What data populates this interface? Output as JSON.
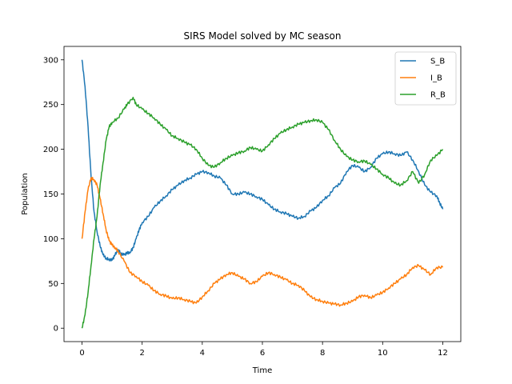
{
  "chart_data": {
    "type": "line",
    "title": "SIRS Model solved by MC season",
    "xlabel": "Time",
    "ylabel": "Population",
    "xlim": [
      -0.6,
      12.6
    ],
    "ylim": [
      -15,
      315
    ],
    "x_ticks": [
      0,
      2,
      4,
      6,
      8,
      10,
      12
    ],
    "y_ticks": [
      0,
      50,
      100,
      150,
      200,
      250,
      300
    ],
    "grid": false,
    "legend_position": "top-right",
    "series": [
      {
        "name": "S_B",
        "color": "#1f77b4",
        "points": [
          [
            0,
            300
          ],
          [
            0.1,
            270
          ],
          [
            0.2,
            225
          ],
          [
            0.3,
            170
          ],
          [
            0.4,
            130
          ],
          [
            0.5,
            108
          ],
          [
            0.6,
            92
          ],
          [
            0.7,
            82
          ],
          [
            0.8,
            78
          ],
          [
            0.9,
            77
          ],
          [
            1.0,
            76
          ],
          [
            1.1,
            82
          ],
          [
            1.2,
            88
          ],
          [
            1.3,
            83
          ],
          [
            1.4,
            82
          ],
          [
            1.5,
            84
          ],
          [
            1.6,
            85
          ],
          [
            1.7,
            90
          ],
          [
            1.8,
            100
          ],
          [
            1.9,
            110
          ],
          [
            2.0,
            118
          ],
          [
            2.2,
            125
          ],
          [
            2.4,
            135
          ],
          [
            2.6,
            142
          ],
          [
            2.8,
            148
          ],
          [
            3.0,
            155
          ],
          [
            3.2,
            160
          ],
          [
            3.4,
            165
          ],
          [
            3.6,
            168
          ],
          [
            3.8,
            172
          ],
          [
            4.0,
            175
          ],
          [
            4.2,
            174
          ],
          [
            4.4,
            170
          ],
          [
            4.6,
            168
          ],
          [
            4.8,
            160
          ],
          [
            5.0,
            150
          ],
          [
            5.2,
            150
          ],
          [
            5.4,
            152
          ],
          [
            5.6,
            150
          ],
          [
            5.8,
            147
          ],
          [
            6.0,
            144
          ],
          [
            6.2,
            138
          ],
          [
            6.4,
            133
          ],
          [
            6.6,
            130
          ],
          [
            6.8,
            128
          ],
          [
            7.0,
            125
          ],
          [
            7.2,
            123
          ],
          [
            7.4,
            125
          ],
          [
            7.6,
            131
          ],
          [
            7.8,
            135
          ],
          [
            8.0,
            143
          ],
          [
            8.2,
            148
          ],
          [
            8.4,
            157
          ],
          [
            8.6,
            162
          ],
          [
            8.8,
            175
          ],
          [
            9.0,
            182
          ],
          [
            9.2,
            180
          ],
          [
            9.4,
            175
          ],
          [
            9.6,
            180
          ],
          [
            9.8,
            190
          ],
          [
            10.0,
            195
          ],
          [
            10.2,
            197
          ],
          [
            10.4,
            195
          ],
          [
            10.6,
            193
          ],
          [
            10.8,
            197
          ],
          [
            11.0,
            188
          ],
          [
            11.2,
            175
          ],
          [
            11.4,
            160
          ],
          [
            11.6,
            152
          ],
          [
            11.8,
            148
          ],
          [
            11.9,
            140
          ],
          [
            12.0,
            133
          ]
        ]
      },
      {
        "name": "I_B",
        "color": "#ff7f0e",
        "points": [
          [
            0,
            100
          ],
          [
            0.1,
            130
          ],
          [
            0.2,
            155
          ],
          [
            0.3,
            168
          ],
          [
            0.4,
            166
          ],
          [
            0.5,
            160
          ],
          [
            0.6,
            145
          ],
          [
            0.7,
            128
          ],
          [
            0.8,
            110
          ],
          [
            0.9,
            98
          ],
          [
            1.0,
            93
          ],
          [
            1.1,
            90
          ],
          [
            1.2,
            86
          ],
          [
            1.4,
            75
          ],
          [
            1.6,
            62
          ],
          [
            1.8,
            58
          ],
          [
            2.0,
            52
          ],
          [
            2.2,
            48
          ],
          [
            2.4,
            42
          ],
          [
            2.6,
            38
          ],
          [
            2.8,
            36
          ],
          [
            3.0,
            33
          ],
          [
            3.2,
            34
          ],
          [
            3.4,
            32
          ],
          [
            3.6,
            30
          ],
          [
            3.8,
            28
          ],
          [
            4.0,
            35
          ],
          [
            4.2,
            42
          ],
          [
            4.4,
            50
          ],
          [
            4.6,
            55
          ],
          [
            4.8,
            60
          ],
          [
            5.0,
            62
          ],
          [
            5.2,
            58
          ],
          [
            5.4,
            55
          ],
          [
            5.6,
            50
          ],
          [
            5.8,
            52
          ],
          [
            6.0,
            58
          ],
          [
            6.2,
            62
          ],
          [
            6.4,
            60
          ],
          [
            6.6,
            57
          ],
          [
            6.8,
            54
          ],
          [
            7.0,
            50
          ],
          [
            7.2,
            48
          ],
          [
            7.4,
            42
          ],
          [
            7.6,
            35
          ],
          [
            7.8,
            32
          ],
          [
            8.0,
            30
          ],
          [
            8.2,
            28
          ],
          [
            8.4,
            27
          ],
          [
            8.6,
            26
          ],
          [
            8.8,
            28
          ],
          [
            9.0,
            30
          ],
          [
            9.2,
            35
          ],
          [
            9.4,
            37
          ],
          [
            9.6,
            34
          ],
          [
            9.8,
            37
          ],
          [
            10.0,
            40
          ],
          [
            10.2,
            45
          ],
          [
            10.4,
            50
          ],
          [
            10.6,
            55
          ],
          [
            10.8,
            60
          ],
          [
            11.0,
            68
          ],
          [
            11.2,
            70
          ],
          [
            11.4,
            65
          ],
          [
            11.6,
            60
          ],
          [
            11.8,
            68
          ],
          [
            12.0,
            68
          ]
        ]
      },
      {
        "name": "R_B",
        "color": "#2ca02c",
        "points": [
          [
            0,
            0
          ],
          [
            0.1,
            15
          ],
          [
            0.2,
            40
          ],
          [
            0.3,
            70
          ],
          [
            0.4,
            100
          ],
          [
            0.5,
            125
          ],
          [
            0.6,
            160
          ],
          [
            0.7,
            185
          ],
          [
            0.8,
            210
          ],
          [
            0.9,
            225
          ],
          [
            1.0,
            230
          ],
          [
            1.2,
            235
          ],
          [
            1.4,
            245
          ],
          [
            1.5,
            250
          ],
          [
            1.7,
            258
          ],
          [
            1.8,
            250
          ],
          [
            2.0,
            245
          ],
          [
            2.2,
            240
          ],
          [
            2.4,
            235
          ],
          [
            2.6,
            228
          ],
          [
            2.8,
            222
          ],
          [
            3.0,
            215
          ],
          [
            3.2,
            212
          ],
          [
            3.4,
            208
          ],
          [
            3.6,
            205
          ],
          [
            3.8,
            200
          ],
          [
            4.0,
            190
          ],
          [
            4.2,
            182
          ],
          [
            4.4,
            180
          ],
          [
            4.6,
            185
          ],
          [
            4.8,
            190
          ],
          [
            5.0,
            193
          ],
          [
            5.2,
            196
          ],
          [
            5.4,
            198
          ],
          [
            5.6,
            202
          ],
          [
            5.8,
            200
          ],
          [
            6.0,
            198
          ],
          [
            6.2,
            205
          ],
          [
            6.4,
            212
          ],
          [
            6.6,
            218
          ],
          [
            6.8,
            222
          ],
          [
            7.0,
            225
          ],
          [
            7.2,
            228
          ],
          [
            7.4,
            230
          ],
          [
            7.6,
            232
          ],
          [
            7.8,
            233
          ],
          [
            8.0,
            230
          ],
          [
            8.2,
            222
          ],
          [
            8.4,
            210
          ],
          [
            8.6,
            200
          ],
          [
            8.8,
            192
          ],
          [
            9.0,
            188
          ],
          [
            9.2,
            186
          ],
          [
            9.4,
            187
          ],
          [
            9.6,
            183
          ],
          [
            9.8,
            178
          ],
          [
            10.0,
            172
          ],
          [
            10.2,
            168
          ],
          [
            10.4,
            162
          ],
          [
            10.6,
            160
          ],
          [
            10.8,
            165
          ],
          [
            11.0,
            175
          ],
          [
            11.2,
            162
          ],
          [
            11.4,
            172
          ],
          [
            11.6,
            188
          ],
          [
            11.8,
            193
          ],
          [
            12.0,
            200
          ]
        ]
      }
    ]
  }
}
